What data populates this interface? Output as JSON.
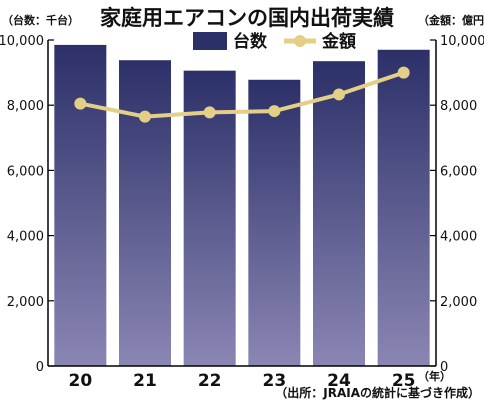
{
  "colors": {
    "bar_top": "#2c3068",
    "bar_bottom": "#8a86b4",
    "line": "#e3cf86",
    "axis": "#000000",
    "text": "#111111"
  },
  "chart_data": {
    "type": "bar",
    "title": "家庭用エアコンの国内出荷実績",
    "left_axis_unit": "（台数：千台）",
    "right_axis_unit": "（金額：億円）",
    "year_unit": "（年）",
    "source": "（出所：JRAIAの統計に基づき作成）",
    "categories": [
      "20",
      "21",
      "22",
      "23",
      "24",
      "25"
    ],
    "ylim": [
      0,
      10000
    ],
    "y2lim": [
      0,
      10000
    ],
    "yticks": [
      "0",
      "2,000",
      "4,000",
      "6,000",
      "8,000",
      "10,000"
    ],
    "y2ticks": [
      "0",
      "2,000",
      "4,000",
      "6,000",
      "8,000",
      "10,000"
    ],
    "series": [
      {
        "name": "台数",
        "type": "bar",
        "axis": "left",
        "values": [
          9850,
          9380,
          9060,
          8780,
          9350,
          9700
        ]
      },
      {
        "name": "金額",
        "type": "line",
        "axis": "right",
        "values": [
          8050,
          7650,
          7780,
          7820,
          8330,
          9000
        ]
      }
    ],
    "legend": "top-center",
    "grid": false
  }
}
